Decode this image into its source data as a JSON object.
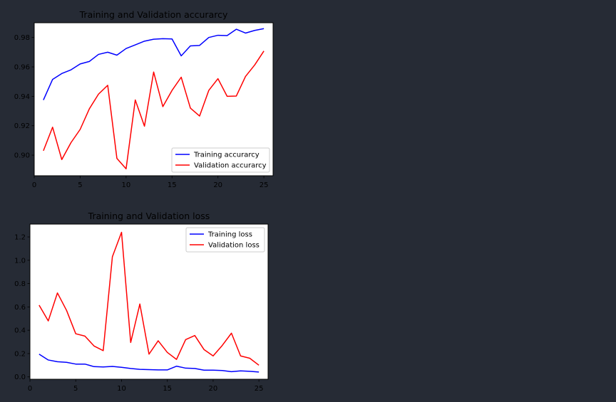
{
  "colors": {
    "background": "#262b35",
    "plot_background": "#ffffff",
    "text": "#000000",
    "training": "#0000ff",
    "validation": "#ff0000"
  },
  "chart_data": [
    {
      "type": "line",
      "title": "Training and Validation accurarcy",
      "xlabel": "",
      "ylabel": "",
      "x": [
        1,
        2,
        3,
        4,
        5,
        6,
        7,
        8,
        9,
        10,
        11,
        12,
        13,
        14,
        15,
        16,
        17,
        18,
        19,
        20,
        21,
        22,
        23,
        24,
        25
      ],
      "series": [
        {
          "name": "Training accurarcy",
          "color": "#0000ff",
          "values": [
            0.9375,
            0.9515,
            0.9555,
            0.958,
            0.962,
            0.9637,
            0.9685,
            0.97,
            0.968,
            0.9725,
            0.975,
            0.9775,
            0.9788,
            0.9792,
            0.979,
            0.9675,
            0.9743,
            0.9746,
            0.98,
            0.9815,
            0.9813,
            0.9856,
            0.983,
            0.9848,
            0.986
          ]
        },
        {
          "name": "Validation accurarcy",
          "color": "#ff0000",
          "values": [
            0.903,
            0.919,
            0.897,
            0.9085,
            0.9175,
            0.9315,
            0.9415,
            0.9475,
            0.8978,
            0.8907,
            0.9375,
            0.9197,
            0.9565,
            0.933,
            0.944,
            0.953,
            0.932,
            0.9266,
            0.944,
            0.952,
            0.94,
            0.9402,
            0.9535,
            0.9613,
            0.9708
          ]
        }
      ],
      "xlim": [
        0,
        26
      ],
      "ylim": [
        0.886,
        0.99
      ],
      "xticks": [
        0,
        5,
        10,
        15,
        20,
        25
      ],
      "yticks": [
        0.9,
        0.92,
        0.94,
        0.96,
        0.98
      ],
      "ytick_labels": [
        "0.90",
        "0.92",
        "0.94",
        "0.96",
        "0.98"
      ],
      "grid": false,
      "legend_position": "lower right"
    },
    {
      "type": "line",
      "title": "Training and Validation loss",
      "xlabel": "",
      "ylabel": "",
      "x": [
        1,
        2,
        3,
        4,
        5,
        6,
        7,
        8,
        9,
        10,
        11,
        12,
        13,
        14,
        15,
        16,
        17,
        18,
        19,
        20,
        21,
        22,
        23,
        24,
        25
      ],
      "series": [
        {
          "name": "Training loss",
          "color": "#0000ff",
          "values": [
            0.195,
            0.145,
            0.13,
            0.125,
            0.11,
            0.11,
            0.088,
            0.085,
            0.09,
            0.082,
            0.072,
            0.065,
            0.062,
            0.06,
            0.06,
            0.092,
            0.075,
            0.072,
            0.058,
            0.058,
            0.055,
            0.045,
            0.052,
            0.048,
            0.042
          ]
        },
        {
          "name": "Validation loss",
          "color": "#ff0000",
          "values": [
            0.615,
            0.48,
            0.72,
            0.57,
            0.37,
            0.35,
            0.265,
            0.225,
            1.03,
            1.24,
            0.295,
            0.625,
            0.195,
            0.31,
            0.21,
            0.15,
            0.32,
            0.355,
            0.235,
            0.18,
            0.27,
            0.375,
            0.18,
            0.16,
            0.1
          ]
        }
      ],
      "xlim": [
        0,
        26
      ],
      "ylim": [
        -0.02,
        1.31
      ],
      "xticks": [
        0,
        5,
        10,
        15,
        20,
        25
      ],
      "yticks": [
        0.0,
        0.2,
        0.4,
        0.6,
        0.8,
        1.0,
        1.2
      ],
      "ytick_labels": [
        "0.0",
        "0.2",
        "0.4",
        "0.6",
        "0.8",
        "1.0",
        "1.2"
      ],
      "grid": false,
      "legend_position": "upper right"
    }
  ]
}
